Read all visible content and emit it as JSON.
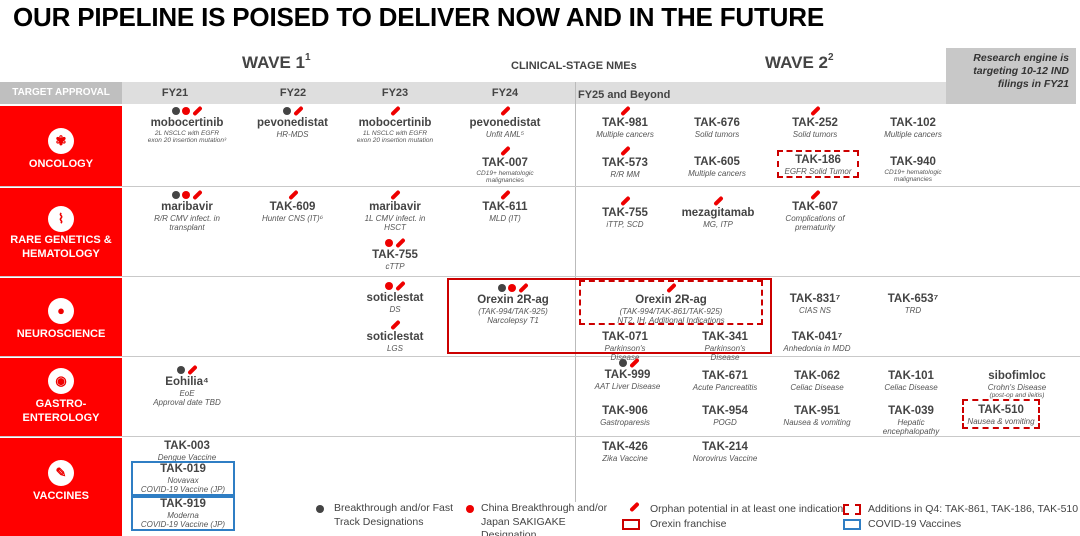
{
  "title": "OUR PIPELINE IS POISED TO DELIVER NOW AND IN THE FUTURE",
  "header": {
    "wave1": "WAVE 1",
    "wave1_sup": "1",
    "clinical": "CLINICAL-STAGE NMEs",
    "wave2": "WAVE 2",
    "wave2_sup": "2",
    "research": "Research engine is targeting 10-12 IND filings in FY21",
    "target_approval": "TARGET APPROVAL",
    "years": [
      "FY21",
      "FY22",
      "FY23",
      "FY24",
      "FY25 and Beyond"
    ]
  },
  "areas": [
    {
      "name": "ONCOLOGY",
      "icon": "dna-icon"
    },
    {
      "name": "RARE GENETICS & HEMATOLOGY",
      "icon": "dna-strand-icon"
    },
    {
      "name": "NEUROSCIENCE",
      "icon": "brain-icon"
    },
    {
      "name": "GASTRO-ENTEROLOGY",
      "icon": "stomach-icon"
    },
    {
      "name": "VACCINES",
      "icon": "syringe-icon"
    }
  ],
  "programs": {
    "onc_mobo1": {
      "name": "mobocertinib",
      "sub": "2L NSCLC with EGFR",
      "sub2": "exon 20 insertion mutation³"
    },
    "onc_pevo": {
      "name": "pevonedistat",
      "sub": "HR-MDS"
    },
    "onc_mobo2": {
      "name": "mobocertinib",
      "sub": "1L NSCLC with EGFR",
      "sub2": "exon 20 insertion mutation"
    },
    "onc_pevo2": {
      "name": "pevonedistat",
      "sub": "Unfit AML⁵"
    },
    "onc_tak007": {
      "name": "TAK-007",
      "sub": "CD19+ hematologic",
      "sub2": "malignancies"
    },
    "onc_tak981": {
      "name": "TAK-981",
      "sub": "Multiple cancers"
    },
    "onc_tak676": {
      "name": "TAK-676",
      "sub": "Solid tumors"
    },
    "onc_tak252": {
      "name": "TAK-252",
      "sub": "Solid tumors"
    },
    "onc_tak102": {
      "name": "TAK-102",
      "sub": "Multiple cancers"
    },
    "onc_tak573": {
      "name": "TAK-573",
      "sub": "R/R MM"
    },
    "onc_tak605": {
      "name": "TAK-605",
      "sub": "Multiple cancers"
    },
    "onc_tak186": {
      "name": "TAK-186",
      "sub": "EGFR Solid Tumor"
    },
    "onc_tak940": {
      "name": "TAK-940",
      "sub": "CD19+ hematologic",
      "sub2": "malignancies"
    },
    "rg_mari1": {
      "name": "maribavir",
      "sub": "R/R CMV infect. in",
      "sub2": "transplant"
    },
    "rg_tak609": {
      "name": "TAK-609",
      "sub": "Hunter CNS (IT)⁶"
    },
    "rg_mari2": {
      "name": "maribavir",
      "sub": "1L CMV infect. in",
      "sub2": "HSCT"
    },
    "rg_tak755a": {
      "name": "TAK-755",
      "sub": "cTTP"
    },
    "rg_tak611": {
      "name": "TAK-611",
      "sub": "MLD (IT)"
    },
    "rg_tak755b": {
      "name": "TAK-755",
      "sub": "iTTP, SCD"
    },
    "rg_meza": {
      "name": "mezagitamab",
      "sub": "MG, ITP"
    },
    "rg_tak607": {
      "name": "TAK-607",
      "sub": "Complications of",
      "sub2": "prematurity"
    },
    "ns_soti1": {
      "name": "soticlestat",
      "sub": "DS"
    },
    "ns_soti2": {
      "name": "soticlestat",
      "sub": "LGS"
    },
    "ns_orexin1": {
      "name": "Orexin 2R-ag",
      "sub": "(TAK-994/TAK-925)",
      "sub2": "Narcolepsy T1"
    },
    "ns_orexin2": {
      "name": "Orexin 2R-ag",
      "sub": "(TAK-994/TAK-861/TAK-925)",
      "sub2": "NT2, IH, Additional Indications"
    },
    "ns_tak831": {
      "name": "TAK-831⁷",
      "sub": "CIAS NS"
    },
    "ns_tak653": {
      "name": "TAK-653⁷",
      "sub": "TRD"
    },
    "ns_tak071": {
      "name": "TAK-071",
      "sub": "Parkinson's",
      "sub2": "Disease"
    },
    "ns_tak341": {
      "name": "TAK-341",
      "sub": "Parkinson's",
      "sub2": "Disease"
    },
    "ns_tak041": {
      "name": "TAK-041⁷",
      "sub": "Anhedonia in MDD"
    },
    "gi_eohilia": {
      "name": "Eohilia⁴",
      "sub": "EoE",
      "sub2": "Approval date TBD"
    },
    "gi_tak999": {
      "name": "TAK-999",
      "sub": "AAT Liver Disease"
    },
    "gi_tak671": {
      "name": "TAK-671",
      "sub": "Acute Pancreatitis"
    },
    "gi_tak062": {
      "name": "TAK-062",
      "sub": "Celiac Disease"
    },
    "gi_tak101": {
      "name": "TAK-101",
      "sub": "Celiac Disease"
    },
    "gi_sibo": {
      "name": "sibofimloc",
      "sub": "Crohn's Disease",
      "sub2": "(post-op and ileitis)"
    },
    "gi_tak906": {
      "name": "TAK-906",
      "sub": "Gastroparesis"
    },
    "gi_tak954": {
      "name": "TAK-954",
      "sub": "POGD"
    },
    "gi_tak951": {
      "name": "TAK-951",
      "sub": "Nausea & vomiting"
    },
    "gi_tak039": {
      "name": "TAK-039",
      "sub": "Hepatic",
      "sub2": "encephalopathy"
    },
    "gi_tak510": {
      "name": "TAK-510",
      "sub": "Nausea & vomiting"
    },
    "vx_tak003": {
      "name": "TAK-003",
      "sub": "Dengue Vaccine"
    },
    "vx_tak019": {
      "name": "TAK-019",
      "sub": "Novavax",
      "sub2": "COVID-19 Vaccine (JP)"
    },
    "vx_tak919": {
      "name": "TAK-919",
      "sub": "Moderna",
      "sub2": "COVID-19 Vaccine (JP)"
    },
    "vx_tak426": {
      "name": "TAK-426",
      "sub": "Zika Vaccine"
    },
    "vx_tak214": {
      "name": "TAK-214",
      "sub": "Norovirus Vaccine"
    }
  },
  "legend": {
    "breakthrough": "Breakthrough and/or Fast Track Designations",
    "china": "China Breakthrough and/or Japan SAKIGAKE Designation",
    "orphan": "Orphan potential in at least one indication",
    "orexin": "Orexin franchise",
    "additions": "Additions in Q4: TAK-861, TAK-186, TAK-510",
    "covid": "COVID-19 Vaccines"
  },
  "colors": {
    "brand_red": "#ff0000",
    "grey_dot": "#444444",
    "covid_blue": "#2f7ec4"
  }
}
